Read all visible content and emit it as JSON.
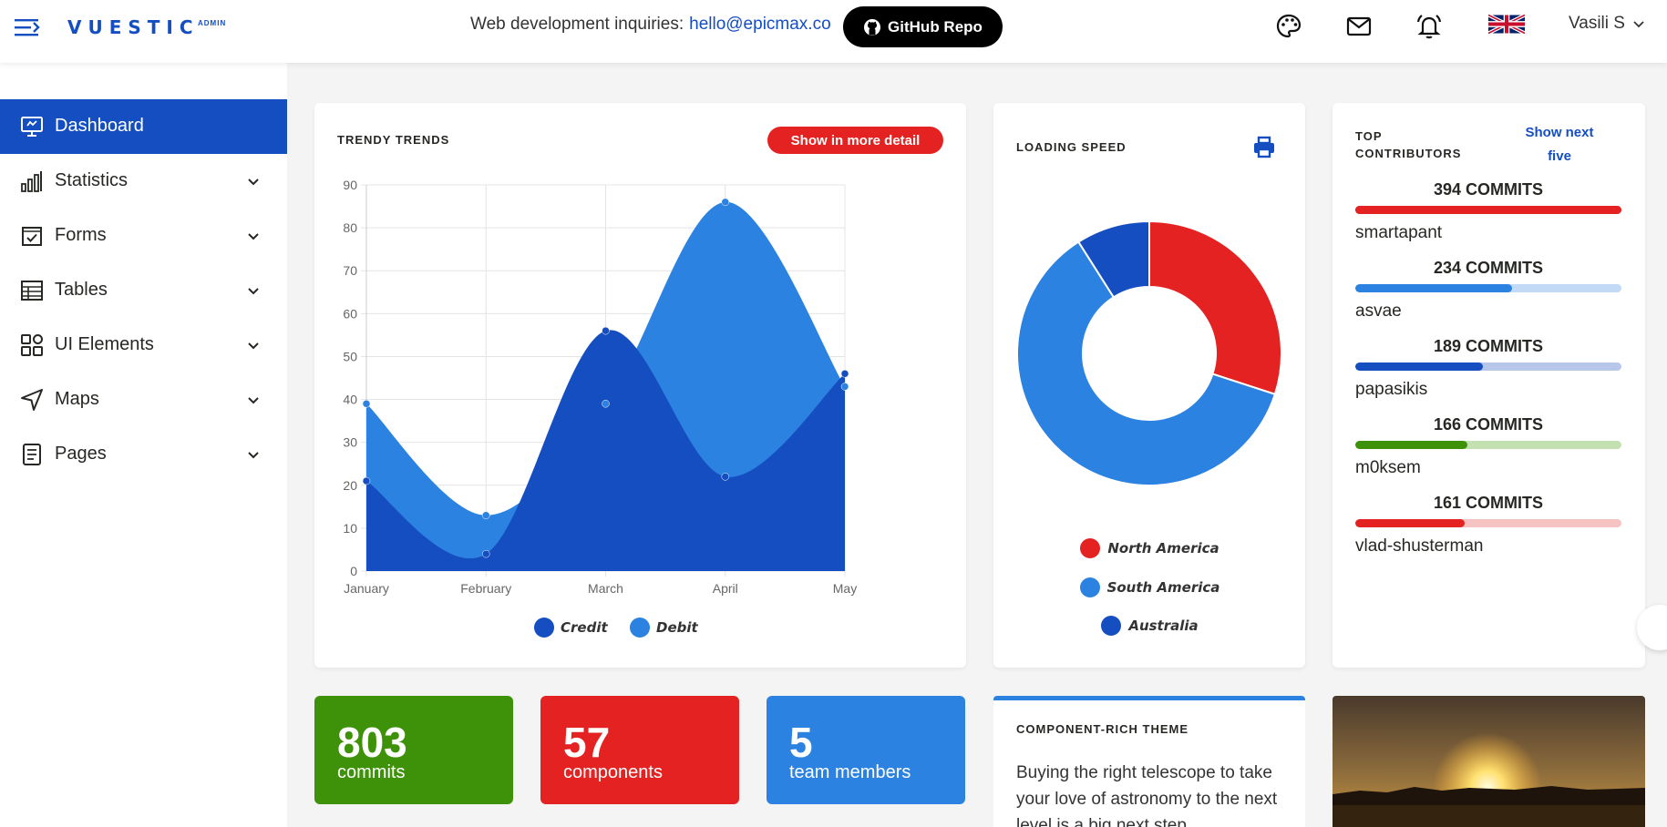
{
  "topbar": {
    "logo": "VUESTIC",
    "logo_sub": "ADMIN",
    "inquiry_label": "Web development inquiries:",
    "inquiry_email": "hello@epicmax.co",
    "github_label": "GitHub Repo",
    "user_name": "Vasili S",
    "icons": [
      "palette-icon",
      "mail-icon",
      "bell-icon",
      "uk-flag-icon"
    ]
  },
  "sidebar": {
    "items": [
      {
        "label": "Dashboard",
        "icon": "monitor-icon",
        "active": true
      },
      {
        "label": "Statistics",
        "icon": "bar-chart-icon"
      },
      {
        "label": "Forms",
        "icon": "checkbox-icon"
      },
      {
        "label": "Tables",
        "icon": "table-icon"
      },
      {
        "label": "UI Elements",
        "icon": "grid-icon"
      },
      {
        "label": "Maps",
        "icon": "navigation-icon"
      },
      {
        "label": "Pages",
        "icon": "document-icon"
      }
    ]
  },
  "trends": {
    "title": "TRENDY TRENDS",
    "detail_button": "Show in more detail"
  },
  "chart_data": [
    {
      "type": "area",
      "title": "TRENDY TRENDS",
      "categories": [
        "January",
        "February",
        "March",
        "April",
        "May"
      ],
      "ylim": [
        0,
        90
      ],
      "yticks": [
        0,
        10,
        20,
        30,
        40,
        50,
        60,
        70,
        80,
        90
      ],
      "grid": true,
      "legend": "bottom",
      "series": [
        {
          "name": "Credit",
          "values": [
            21,
            4,
            56,
            22,
            46
          ],
          "color": "#154ec1"
        },
        {
          "name": "Debit",
          "values": [
            39,
            13,
            39,
            86,
            43
          ],
          "color": "#2c82e0"
        }
      ]
    },
    {
      "type": "pie",
      "title": "LOADING SPEED",
      "legend": "bottom",
      "labels": [
        "North America",
        "South America",
        "Australia"
      ],
      "values": [
        30,
        61,
        9
      ],
      "colors": [
        "#e42222",
        "#2c82e0",
        "#154ec1"
      ]
    }
  ],
  "loading": {
    "title": "LOADING SPEED",
    "legend": [
      "North America",
      "South America",
      "Australia"
    ]
  },
  "contributors": {
    "title_line1": "TOP",
    "title_line2": "CONTRIBUTORS",
    "show_next_line1": "Show next",
    "show_next_line2": "five",
    "items": [
      {
        "commits": "394 COMMITS",
        "name": "smartapant",
        "fill": 1.0,
        "color": "#e42222",
        "track": "#e42222"
      },
      {
        "commits": "234 COMMITS",
        "name": "asvae",
        "fill": 0.59,
        "color": "#2c82e0",
        "track": "#c2daf5"
      },
      {
        "commits": "189 COMMITS",
        "name": "papasikis",
        "fill": 0.48,
        "color": "#154ec1",
        "track": "#b6c7ea"
      },
      {
        "commits": "166 COMMITS",
        "name": "m0ksem",
        "fill": 0.42,
        "color": "#3d9209",
        "track": "#c2e0b0"
      },
      {
        "commits": "161 COMMITS",
        "name": "vlad-shusterman",
        "fill": 0.41,
        "color": "#e42222",
        "track": "#f6c2c2"
      }
    ]
  },
  "stats": [
    {
      "value": "803",
      "label": "commits",
      "color": "#3d9209"
    },
    {
      "value": "57",
      "label": "components",
      "color": "#e42222"
    },
    {
      "value": "5",
      "label": "team members",
      "color": "#2c82e0"
    }
  ],
  "rich": {
    "title": "COMPONENT-RICH THEME",
    "text": "Buying the right telescope to take your love of astronomy to the next level is a big next step."
  }
}
